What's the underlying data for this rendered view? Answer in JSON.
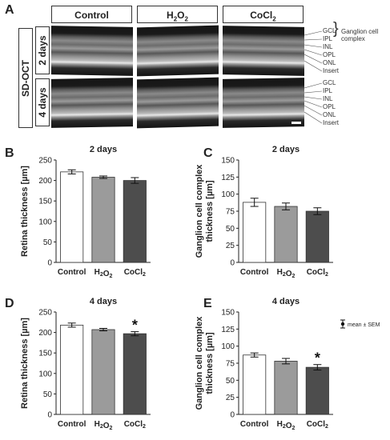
{
  "panel_letters": {
    "a": "A",
    "b": "B",
    "c": "C",
    "d": "D",
    "e": "E"
  },
  "image_panel": {
    "column_headers": [
      "Control",
      "H2O2",
      "CoCl2"
    ],
    "method_label": "SD-OCT",
    "row_labels": [
      "2 days",
      "4 days"
    ],
    "layer_labels": [
      "GCL",
      "IPL",
      "INL",
      "OPL",
      "ONL",
      "Insert"
    ],
    "gcc_label_line1": "Ganglion cell",
    "gcc_label_line2": "complex"
  },
  "colors": {
    "control": "#ffffff",
    "h2o2": "#9b9b9b",
    "cocl2": "#4d4d4d",
    "bar_stroke": "#333333"
  },
  "chart_data": [
    {
      "id": "B",
      "type": "bar",
      "title": "2 days",
      "categories": [
        "Control",
        "H2O2",
        "CoCl2"
      ],
      "values": [
        221,
        208,
        200
      ],
      "errors": [
        5,
        3,
        7
      ],
      "ylabel": "Retina thickness [µm]",
      "ylim": [
        0,
        250
      ],
      "yticks": [
        0,
        50,
        100,
        150,
        200,
        250
      ],
      "significance": [
        "",
        "",
        ""
      ],
      "legend": ""
    },
    {
      "id": "C",
      "type": "bar",
      "title": "2 days",
      "categories": [
        "Control",
        "H2O2",
        "CoCl2"
      ],
      "values": [
        88,
        82,
        75
      ],
      "errors": [
        6,
        5,
        5
      ],
      "ylabel_line1": "Ganglion cell complex",
      "ylabel_line2": "thickness [µm]",
      "ylim": [
        0,
        150
      ],
      "yticks": [
        0,
        25,
        50,
        75,
        100,
        125,
        150
      ],
      "significance": [
        "",
        "",
        ""
      ],
      "legend": ""
    },
    {
      "id": "D",
      "type": "bar",
      "title": "4 days",
      "categories": [
        "Control",
        "H2O2",
        "CoCl2"
      ],
      "values": [
        218,
        207,
        197
      ],
      "errors": [
        5,
        3,
        5
      ],
      "ylabel": "Retina thickness [µm]",
      "ylim": [
        0,
        250
      ],
      "yticks": [
        0,
        50,
        100,
        150,
        200,
        250
      ],
      "significance": [
        "",
        "",
        "*"
      ],
      "legend": ""
    },
    {
      "id": "E",
      "type": "bar",
      "title": "4 days",
      "categories": [
        "Control",
        "H2O2",
        "CoCl2"
      ],
      "values": [
        87,
        78,
        69
      ],
      "errors": [
        3,
        4,
        4
      ],
      "ylabel_line1": "Ganglion cell complex",
      "ylabel_line2": "thickness [µm]",
      "ylim": [
        0,
        150
      ],
      "yticks": [
        0,
        25,
        50,
        75,
        100,
        125,
        150
      ],
      "significance": [
        "",
        "",
        "*"
      ],
      "legend": "mean ± SEM"
    }
  ]
}
